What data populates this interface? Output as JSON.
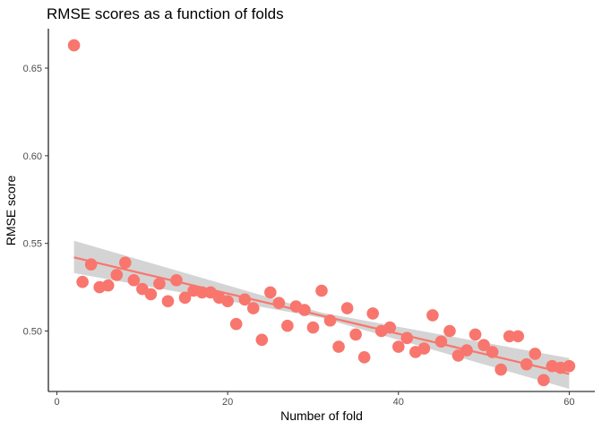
{
  "chart_data": {
    "type": "scatter",
    "title": "RMSE scores as a function of folds",
    "xlabel": "Number of fold",
    "ylabel": "RMSE score",
    "xlim": [
      -1.0,
      63.0
    ],
    "ylim": [
      0.4655,
      0.6725
    ],
    "xticks": [
      0,
      20,
      40,
      60
    ],
    "yticks": [
      0.5,
      0.55,
      0.6,
      0.65
    ],
    "ytick_labels": [
      "0.50",
      "0.55",
      "0.60",
      "0.65"
    ],
    "grid": false,
    "point_color": "#F8766D",
    "line_color": "#F8766D",
    "band_color": "#999999",
    "x": [
      2,
      3,
      4,
      5,
      6,
      7,
      8,
      9,
      10,
      11,
      12,
      13,
      14,
      15,
      16,
      17,
      18,
      19,
      20,
      21,
      22,
      23,
      24,
      25,
      26,
      27,
      28,
      29,
      30,
      31,
      32,
      33,
      34,
      35,
      36,
      37,
      38,
      39,
      40,
      41,
      42,
      43,
      44,
      45,
      46,
      47,
      48,
      49,
      50,
      51,
      52,
      53,
      54,
      55,
      56,
      57,
      58,
      59,
      60
    ],
    "y": [
      0.663,
      0.528,
      0.538,
      0.525,
      0.526,
      0.532,
      0.539,
      0.529,
      0.524,
      0.521,
      0.527,
      0.517,
      0.529,
      0.519,
      0.523,
      0.522,
      0.522,
      0.519,
      0.517,
      0.504,
      0.518,
      0.513,
      0.495,
      0.522,
      0.516,
      0.503,
      0.514,
      0.512,
      0.502,
      0.523,
      0.506,
      0.491,
      0.513,
      0.498,
      0.485,
      0.51,
      0.5,
      0.502,
      0.491,
      0.496,
      0.488,
      0.49,
      0.509,
      0.494,
      0.5,
      0.486,
      0.489,
      0.498,
      0.492,
      0.488,
      0.478,
      0.497,
      0.497,
      0.481,
      0.487,
      0.472,
      0.48,
      0.479,
      0.48
    ],
    "fit": {
      "x_start": 2,
      "y_start": 0.542,
      "x_end": 60,
      "y_end": 0.4755
    },
    "band": {
      "x": [
        2,
        31,
        60
      ],
      "lower": [
        0.533,
        0.5075,
        0.467
      ],
      "upper": [
        0.5515,
        0.5105,
        0.4845
      ]
    }
  }
}
